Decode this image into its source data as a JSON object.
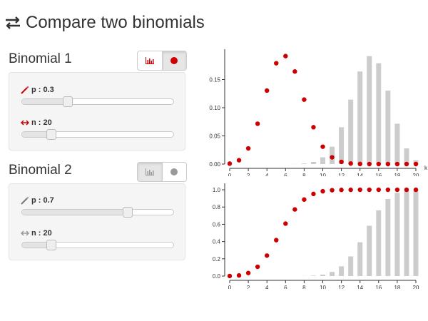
{
  "header": {
    "title": "Compare two binomials",
    "icon": "exchange-arrows-icon"
  },
  "colors": {
    "accent": "#cc0000",
    "muted": "#999999",
    "bar": "#cccccc",
    "text": "#333333"
  },
  "binomial1": {
    "title": "Binomial 1",
    "toggle": {
      "bar_icon": "bar-chart-icon",
      "dot_icon": "dot-icon",
      "selected": "dot"
    },
    "p": {
      "label": "p : 0.3",
      "icon": "magic-wand-icon",
      "value": 0.3,
      "min": 0,
      "max": 1
    },
    "n": {
      "label": "n : 20",
      "icon": "horizontal-arrows-icon",
      "value": 20,
      "min": 1,
      "max": 100
    }
  },
  "binomial2": {
    "title": "Binomial 2",
    "toggle": {
      "bar_icon": "bar-chart-icon",
      "dot_icon": "dot-icon",
      "selected": "bar"
    },
    "p": {
      "label": "p : 0.7",
      "icon": "magic-wand-icon",
      "value": 0.7,
      "min": 0,
      "max": 1
    },
    "n": {
      "label": "n : 20",
      "icon": "horizontal-arrows-icon",
      "value": 20,
      "min": 1,
      "max": 100
    }
  },
  "chart_data": [
    {
      "type": "bar",
      "xlabel": "k",
      "x": [
        0,
        1,
        2,
        3,
        4,
        5,
        6,
        7,
        8,
        9,
        10,
        11,
        12,
        13,
        14,
        15,
        16,
        17,
        18,
        19,
        20
      ],
      "xticks": [
        "0",
        "2",
        "4",
        "6",
        "8",
        "10",
        "12",
        "14",
        "16",
        "18",
        "20"
      ],
      "yticks": [
        "0.00",
        "0.05",
        "0.10",
        "0.15"
      ],
      "ylim": [
        0,
        0.2
      ],
      "series": [
        {
          "style": "points",
          "values": [
            0.0008,
            0.0068,
            0.0278,
            0.0716,
            0.1304,
            0.1789,
            0.1916,
            0.1643,
            0.1144,
            0.0654,
            0.0308,
            0.012,
            0.0039,
            0.001,
            0.0002,
            0,
            0,
            0,
            0,
            0,
            0
          ]
        },
        {
          "style": "bars",
          "values": [
            0,
            0,
            0,
            0,
            0,
            0,
            0,
            0.0002,
            0.001,
            0.0039,
            0.012,
            0.0308,
            0.0654,
            0.1144,
            0.1643,
            0.1916,
            0.1789,
            0.1304,
            0.0716,
            0.0278,
            0.0068
          ]
        }
      ]
    },
    {
      "type": "bar",
      "xlabel": "",
      "x": [
        0,
        1,
        2,
        3,
        4,
        5,
        6,
        7,
        8,
        9,
        10,
        11,
        12,
        13,
        14,
        15,
        16,
        17,
        18,
        19,
        20
      ],
      "xticks": [
        "0",
        "2",
        "4",
        "6",
        "8",
        "10",
        "12",
        "14",
        "16",
        "18",
        "20"
      ],
      "yticks": [
        "0.0",
        "0.2",
        "0.4",
        "0.6",
        "0.8",
        "1.0"
      ],
      "ylim": [
        0,
        1.05
      ],
      "series": [
        {
          "style": "points",
          "values": [
            0.0008,
            0.0076,
            0.0355,
            0.1071,
            0.2375,
            0.4164,
            0.608,
            0.7723,
            0.8867,
            0.952,
            0.9829,
            0.9949,
            0.9987,
            0.9997,
            1.0,
            1.0,
            1.0,
            1.0,
            1.0,
            1.0,
            1.0
          ]
        },
        {
          "style": "bars",
          "values": [
            0,
            0,
            0,
            0,
            0,
            0,
            0,
            0,
            0.0013,
            0.0051,
            0.0171,
            0.048,
            0.1133,
            0.2277,
            0.392,
            0.5836,
            0.7625,
            0.8929,
            0.9645,
            0.9924,
            0.9992
          ]
        }
      ]
    }
  ]
}
